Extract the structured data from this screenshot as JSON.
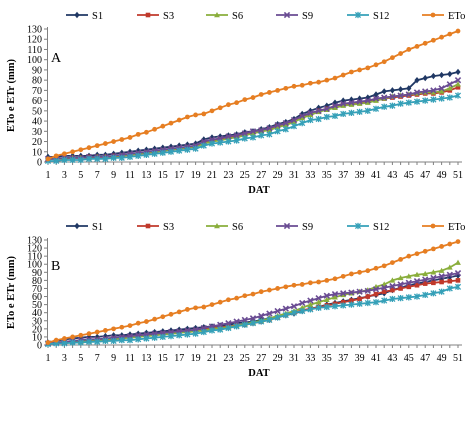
{
  "chart_data": [
    {
      "type": "line",
      "panel_label": "A",
      "xlabel": "DAT",
      "ylabel": "ETo e ETr (mm)",
      "ylim": [
        0,
        130
      ],
      "yticks": [
        0,
        10,
        20,
        30,
        40,
        50,
        60,
        70,
        80,
        90,
        100,
        110,
        120,
        130
      ],
      "xticks": [
        1,
        3,
        5,
        7,
        9,
        11,
        13,
        15,
        17,
        19,
        21,
        23,
        25,
        27,
        29,
        31,
        33,
        35,
        37,
        39,
        41,
        43,
        45,
        47,
        49,
        51
      ],
      "grid": false,
      "legend": "top",
      "x": [
        1,
        2,
        3,
        4,
        5,
        6,
        7,
        8,
        9,
        10,
        11,
        12,
        13,
        14,
        15,
        16,
        17,
        18,
        19,
        20,
        21,
        22,
        23,
        24,
        25,
        26,
        27,
        28,
        29,
        30,
        31,
        32,
        33,
        34,
        35,
        36,
        37,
        38,
        39,
        40,
        41,
        42,
        43,
        44,
        45,
        46,
        47,
        48,
        49,
        50,
        51
      ],
      "series": [
        {
          "name": "S1",
          "color": "#203864",
          "marker": "diamond",
          "values": [
            5,
            5,
            6,
            6,
            6,
            6,
            7,
            7,
            8,
            9,
            10,
            11,
            12,
            13,
            14,
            15,
            16,
            17,
            18,
            22,
            24,
            25,
            26,
            27,
            29,
            30,
            32,
            34,
            37,
            39,
            42,
            47,
            50,
            53,
            55,
            58,
            60,
            61,
            62,
            63,
            66,
            69,
            70,
            71,
            72,
            80,
            82,
            84,
            85,
            86,
            88
          ]
        },
        {
          "name": "S3",
          "color": "#c0392b",
          "marker": "square",
          "values": [
            3,
            3,
            4,
            4,
            4,
            5,
            5,
            5,
            6,
            6,
            7,
            8,
            9,
            10,
            11,
            12,
            13,
            14,
            15,
            19,
            21,
            22,
            24,
            25,
            27,
            28,
            30,
            32,
            35,
            37,
            40,
            44,
            47,
            50,
            52,
            54,
            56,
            57,
            58,
            59,
            61,
            62,
            63,
            64,
            65,
            66,
            67,
            67,
            68,
            70,
            73
          ]
        },
        {
          "name": "S6",
          "color": "#8aae3c",
          "marker": "triangle",
          "values": [
            3,
            3,
            3,
            4,
            4,
            4,
            5,
            5,
            5,
            6,
            7,
            8,
            9,
            10,
            11,
            12,
            13,
            14,
            15,
            18,
            20,
            21,
            23,
            24,
            26,
            28,
            30,
            31,
            34,
            36,
            39,
            43,
            46,
            49,
            51,
            53,
            55,
            56,
            57,
            58,
            60,
            62,
            64,
            65,
            66,
            67,
            68,
            68,
            69,
            72,
            76
          ]
        },
        {
          "name": "S9",
          "color": "#6a4c93",
          "marker": "x",
          "values": [
            3,
            3,
            4,
            4,
            4,
            5,
            5,
            5,
            6,
            7,
            8,
            9,
            10,
            11,
            12,
            13,
            14,
            15,
            16,
            20,
            22,
            23,
            25,
            26,
            28,
            30,
            31,
            33,
            36,
            38,
            41,
            45,
            48,
            50,
            52,
            55,
            57,
            58,
            59,
            60,
            62,
            63,
            64,
            65,
            66,
            68,
            69,
            70,
            72,
            76,
            80
          ]
        },
        {
          "name": "S12",
          "color": "#35a0b8",
          "marker": "star",
          "values": [
            1,
            1,
            2,
            2,
            2,
            3,
            3,
            3,
            4,
            4,
            5,
            6,
            7,
            8,
            9,
            10,
            11,
            12,
            13,
            16,
            18,
            19,
            20,
            21,
            23,
            24,
            26,
            27,
            30,
            32,
            35,
            38,
            41,
            42,
            44,
            45,
            47,
            48,
            49,
            50,
            52,
            54,
            55,
            57,
            58,
            59,
            60,
            61,
            62,
            63,
            65
          ]
        },
        {
          "name": "ETo",
          "color": "#e67e22",
          "marker": "circle",
          "values": [
            3,
            6,
            8,
            10,
            12,
            14,
            16,
            18,
            20,
            22,
            24,
            27,
            29,
            32,
            35,
            38,
            41,
            44,
            46,
            47,
            50,
            53,
            56,
            58,
            61,
            63,
            66,
            68,
            70,
            72,
            74,
            75,
            77,
            78,
            80,
            82,
            85,
            88,
            90,
            92,
            95,
            98,
            102,
            106,
            110,
            113,
            116,
            119,
            122,
            125,
            128
          ]
        }
      ]
    },
    {
      "type": "line",
      "panel_label": "B",
      "xlabel": "DAT",
      "ylabel": "ETo e ETr (mm)",
      "ylim": [
        0,
        130
      ],
      "yticks": [
        0,
        10,
        20,
        30,
        40,
        50,
        60,
        70,
        80,
        90,
        100,
        110,
        120,
        130
      ],
      "xticks": [
        1,
        3,
        5,
        7,
        9,
        11,
        13,
        15,
        17,
        19,
        21,
        23,
        25,
        27,
        29,
        31,
        33,
        35,
        37,
        39,
        41,
        43,
        45,
        47,
        49,
        51
      ],
      "grid": false,
      "legend": "top",
      "x": [
        1,
        2,
        3,
        4,
        5,
        6,
        7,
        8,
        9,
        10,
        11,
        12,
        13,
        14,
        15,
        16,
        17,
        18,
        19,
        20,
        21,
        22,
        23,
        24,
        25,
        26,
        27,
        28,
        29,
        30,
        31,
        32,
        33,
        34,
        35,
        36,
        37,
        38,
        39,
        40,
        41,
        42,
        43,
        44,
        45,
        46,
        47,
        48,
        49,
        50,
        51
      ],
      "series": [
        {
          "name": "S1",
          "color": "#203864",
          "marker": "diamond",
          "values": [
            3,
            5,
            7,
            8,
            9,
            10,
            10,
            11,
            12,
            12,
            13,
            14,
            15,
            16,
            17,
            18,
            19,
            20,
            21,
            22,
            23,
            24,
            25,
            27,
            28,
            29,
            31,
            33,
            35,
            37,
            39,
            42,
            45,
            47,
            50,
            52,
            54,
            56,
            58,
            60,
            62,
            64,
            68,
            71,
            74,
            76,
            78,
            80,
            82,
            84,
            86
          ]
        },
        {
          "name": "S3",
          "color": "#c0392b",
          "marker": "square",
          "values": [
            2,
            3,
            4,
            5,
            5,
            6,
            6,
            7,
            8,
            9,
            10,
            11,
            12,
            13,
            14,
            15,
            16,
            17,
            18,
            20,
            21,
            22,
            23,
            24,
            25,
            27,
            29,
            31,
            34,
            37,
            40,
            43,
            45,
            47,
            49,
            51,
            53,
            55,
            57,
            60,
            63,
            66,
            68,
            70,
            72,
            74,
            76,
            77,
            78,
            79,
            80
          ]
        },
        {
          "name": "S6",
          "color": "#8aae3c",
          "marker": "triangle",
          "values": [
            2,
            3,
            3,
            4,
            4,
            5,
            6,
            6,
            7,
            8,
            9,
            10,
            11,
            12,
            13,
            14,
            15,
            16,
            17,
            18,
            20,
            21,
            22,
            24,
            26,
            28,
            30,
            33,
            36,
            39,
            42,
            46,
            50,
            53,
            56,
            59,
            62,
            64,
            66,
            68,
            72,
            75,
            80,
            83,
            85,
            87,
            88,
            90,
            92,
            96,
            102
          ]
        },
        {
          "name": "S9",
          "color": "#6a4c93",
          "marker": "x",
          "values": [
            2,
            3,
            4,
            5,
            6,
            7,
            7,
            8,
            9,
            10,
            11,
            12,
            13,
            14,
            15,
            16,
            17,
            18,
            19,
            21,
            23,
            25,
            27,
            29,
            31,
            33,
            36,
            39,
            42,
            45,
            48,
            52,
            55,
            58,
            61,
            63,
            64,
            65,
            66,
            67,
            69,
            71,
            73,
            75,
            77,
            79,
            81,
            83,
            85,
            87,
            89
          ]
        },
        {
          "name": "S12",
          "color": "#35a0b8",
          "marker": "star",
          "values": [
            1,
            2,
            2,
            3,
            3,
            4,
            4,
            5,
            5,
            6,
            6,
            7,
            8,
            9,
            10,
            11,
            12,
            13,
            14,
            16,
            18,
            19,
            21,
            23,
            25,
            27,
            29,
            31,
            34,
            37,
            40,
            42,
            44,
            46,
            47,
            48,
            49,
            50,
            51,
            52,
            53,
            55,
            57,
            58,
            59,
            60,
            62,
            64,
            66,
            70,
            72
          ]
        },
        {
          "name": "ETo",
          "color": "#e67e22",
          "marker": "circle",
          "values": [
            3,
            6,
            8,
            10,
            12,
            14,
            16,
            18,
            20,
            22,
            24,
            27,
            29,
            32,
            35,
            38,
            41,
            44,
            46,
            47,
            50,
            53,
            56,
            58,
            61,
            63,
            66,
            68,
            70,
            72,
            74,
            75,
            77,
            78,
            80,
            82,
            85,
            88,
            90,
            92,
            95,
            98,
            102,
            106,
            110,
            113,
            116,
            119,
            122,
            125,
            128
          ]
        }
      ]
    }
  ]
}
